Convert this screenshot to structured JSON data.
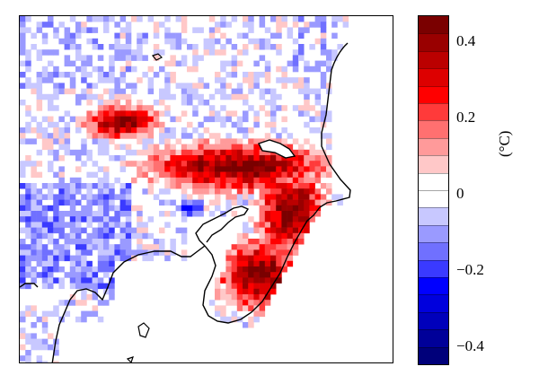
{
  "colorbar": {
    "unit": "(°C)",
    "ticks": [
      "0.4",
      "0.2",
      "0",
      "−0.2",
      "−0.4"
    ],
    "levels": [
      "#7a0000",
      "#990000",
      "#bb0000",
      "#dd0000",
      "#ff0000",
      "#ff3a3a",
      "#ff7070",
      "#ff9a9a",
      "#ffc8c8",
      "#ffffff",
      "#ffffff",
      "#c8c8ff",
      "#9a9aff",
      "#7070ff",
      "#3a3aff",
      "#0000ff",
      "#0000dd",
      "#0000bb",
      "#000099",
      "#00007a"
    ]
  },
  "colors": {
    "coastline": "#000000",
    "warm": "#dd0000",
    "cool": "#3a3aff"
  }
}
